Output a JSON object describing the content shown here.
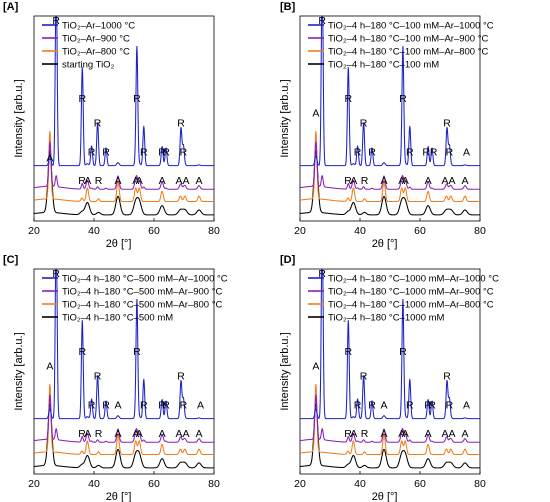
{
  "figure": {
    "colors": {
      "blue": "#1c22c8",
      "purple": "#8a1fb8",
      "orange": "#f07d1a",
      "black": "#000000"
    }
  },
  "chart_data": [
    {
      "type": "line",
      "panel": "[A]",
      "xlabel": "2θ [°]",
      "ylabel": "Intensity [arb.u.]",
      "xlim": [
        20,
        80
      ],
      "xticks": [
        "20",
        "40",
        "60",
        "80"
      ],
      "series": [
        {
          "name": "TiO₂–Ar–1000 °C",
          "color": "blue"
        },
        {
          "name": "TiO₂–Ar–900 °C",
          "color": "purple"
        },
        {
          "name": "TiO₂–Ar–800 °C",
          "color": "orange"
        },
        {
          "name": "starting TiO₂",
          "color": "black"
        }
      ],
      "peak_labels": [
        {
          "text": "R",
          "x": 27.4,
          "tier": "top"
        },
        {
          "text": "R",
          "x": 36.1,
          "tier": "high"
        },
        {
          "text": "R",
          "x": 41.2,
          "tier": "mid"
        },
        {
          "text": "R",
          "x": 39.2,
          "tier": "low"
        },
        {
          "text": "R",
          "x": 44.0,
          "tier": "low"
        },
        {
          "text": "R",
          "x": 54.3,
          "tier": "high"
        },
        {
          "text": "R",
          "x": 56.6,
          "tier": "low"
        },
        {
          "text": "R",
          "x": 62.7,
          "tier": "low"
        },
        {
          "text": "R",
          "x": 64.0,
          "tier": "low"
        },
        {
          "text": "R",
          "x": 69.0,
          "tier": "mid"
        },
        {
          "text": "R",
          "x": 69.8,
          "tier": "low"
        },
        {
          "text": "A",
          "x": 25.3,
          "tier": "lowA"
        },
        {
          "text": "R",
          "x": 36.0,
          "tier": "base"
        },
        {
          "text": "A",
          "x": 37.9,
          "tier": "base"
        },
        {
          "text": "R",
          "x": 41.5,
          "tier": "base"
        },
        {
          "text": "A",
          "x": 48.0,
          "tier": "base"
        },
        {
          "text": "A",
          "x": 53.9,
          "tier": "base"
        },
        {
          "text": "A",
          "x": 55.1,
          "tier": "base"
        },
        {
          "text": "A",
          "x": 62.7,
          "tier": "base"
        },
        {
          "text": "AA",
          "x": 69.5,
          "tier": "base"
        },
        {
          "text": "A",
          "x": 75.0,
          "tier": "base"
        }
      ]
    },
    {
      "type": "line",
      "panel": "[B]",
      "xlabel": "2θ [°]",
      "ylabel": "Intensity [arb.u.]",
      "xlim": [
        20,
        80
      ],
      "xticks": [
        "20",
        "40",
        "60",
        "80"
      ],
      "series": [
        {
          "name": "TiO₂–4 h–180 °C–100 mM–Ar–1000 °C",
          "color": "blue"
        },
        {
          "name": "TiO₂–4 h–180 °C–100 mM–Ar–900 °C",
          "color": "purple"
        },
        {
          "name": "TiO₂–4 h–180 °C–100 mM–Ar–800 °C",
          "color": "orange"
        },
        {
          "name": "TiO₂–4 h–180 °C–100 mM",
          "color": "black"
        }
      ],
      "peak_labels": [
        {
          "text": "R",
          "x": 27.4,
          "tier": "top"
        },
        {
          "text": "A",
          "x": 25.3,
          "tier": "highA"
        },
        {
          "text": "R",
          "x": 36.1,
          "tier": "high"
        },
        {
          "text": "R",
          "x": 41.2,
          "tier": "mid"
        },
        {
          "text": "R",
          "x": 39.2,
          "tier": "low"
        },
        {
          "text": "R",
          "x": 44.0,
          "tier": "low"
        },
        {
          "text": "R",
          "x": 54.3,
          "tier": "high"
        },
        {
          "text": "R",
          "x": 56.6,
          "tier": "low"
        },
        {
          "text": "RR",
          "x": 63.3,
          "tier": "low"
        },
        {
          "text": "R",
          "x": 69.0,
          "tier": "mid"
        },
        {
          "text": "R",
          "x": 69.8,
          "tier": "low"
        },
        {
          "text": "A",
          "x": 75.5,
          "tier": "low"
        },
        {
          "text": "R",
          "x": 36.0,
          "tier": "base"
        },
        {
          "text": "A",
          "x": 37.9,
          "tier": "base"
        },
        {
          "text": "R",
          "x": 41.5,
          "tier": "base"
        },
        {
          "text": "A",
          "x": 48.0,
          "tier": "base"
        },
        {
          "text": "A",
          "x": 53.9,
          "tier": "base"
        },
        {
          "text": "A",
          "x": 55.1,
          "tier": "base"
        },
        {
          "text": "A",
          "x": 62.7,
          "tier": "base"
        },
        {
          "text": "AA",
          "x": 69.5,
          "tier": "base"
        },
        {
          "text": "A",
          "x": 75.0,
          "tier": "base"
        }
      ]
    },
    {
      "type": "line",
      "panel": "[C]",
      "xlabel": "2θ [°]",
      "ylabel": "Intensity [arb.u.]",
      "xlim": [
        20,
        80
      ],
      "xticks": [
        "20",
        "40",
        "60",
        "80"
      ],
      "series": [
        {
          "name": "TiO₂–4 h–180 °C–500 mM–Ar–1000 °C",
          "color": "blue"
        },
        {
          "name": "TiO₂–4 h–180 °C–500 mM–Ar–900 °C",
          "color": "purple"
        },
        {
          "name": "TiO₂–4 h–180 °C–500 mM–Ar–800 °C",
          "color": "orange"
        },
        {
          "name": "TiO₂–4 h–180 °C–500 mM",
          "color": "black"
        }
      ],
      "peak_labels": [
        {
          "text": "R",
          "x": 27.4,
          "tier": "top"
        },
        {
          "text": "A",
          "x": 25.3,
          "tier": "highA"
        },
        {
          "text": "R",
          "x": 36.1,
          "tier": "high"
        },
        {
          "text": "R",
          "x": 41.2,
          "tier": "mid"
        },
        {
          "text": "R",
          "x": 39.2,
          "tier": "low"
        },
        {
          "text": "R",
          "x": 44.0,
          "tier": "low"
        },
        {
          "text": "A",
          "x": 48.0,
          "tier": "low"
        },
        {
          "text": "R",
          "x": 54.3,
          "tier": "high"
        },
        {
          "text": "R",
          "x": 56.6,
          "tier": "low"
        },
        {
          "text": "R",
          "x": 62.7,
          "tier": "low"
        },
        {
          "text": "R",
          "x": 64.0,
          "tier": "low"
        },
        {
          "text": "R",
          "x": 69.0,
          "tier": "mid"
        },
        {
          "text": "R",
          "x": 69.8,
          "tier": "low"
        },
        {
          "text": "A",
          "x": 75.5,
          "tier": "low"
        },
        {
          "text": "R",
          "x": 36.0,
          "tier": "base"
        },
        {
          "text": "A",
          "x": 37.9,
          "tier": "base"
        },
        {
          "text": "R",
          "x": 41.5,
          "tier": "base"
        },
        {
          "text": "A",
          "x": 48.0,
          "tier": "base"
        },
        {
          "text": "A",
          "x": 53.9,
          "tier": "base"
        },
        {
          "text": "A",
          "x": 55.1,
          "tier": "base"
        },
        {
          "text": "A",
          "x": 62.7,
          "tier": "base"
        },
        {
          "text": "AA",
          "x": 69.5,
          "tier": "base"
        },
        {
          "text": "A",
          "x": 75.0,
          "tier": "base"
        }
      ]
    },
    {
      "type": "line",
      "panel": "[D]",
      "xlabel": "2θ [°]",
      "ylabel": "Intensity [arb.u.]",
      "xlim": [
        20,
        80
      ],
      "xticks": [
        "20",
        "40",
        "60",
        "80"
      ],
      "series": [
        {
          "name": "TiO₂–4 h–180 °C–1000 mM–Ar–1000 °C",
          "color": "blue"
        },
        {
          "name": "TiO₂–4 h–180 °C–1000 mM–Ar–900 °C",
          "color": "purple"
        },
        {
          "name": "TiO₂–4 h–180 °C–1000 mM–Ar–800 °C",
          "color": "orange"
        },
        {
          "name": "TiO₂–4 h–180 °C–1000 mM",
          "color": "black"
        }
      ],
      "peak_labels": [
        {
          "text": "R",
          "x": 27.4,
          "tier": "top"
        },
        {
          "text": "A",
          "x": 25.3,
          "tier": "highA"
        },
        {
          "text": "R",
          "x": 36.1,
          "tier": "high"
        },
        {
          "text": "R",
          "x": 41.2,
          "tier": "mid"
        },
        {
          "text": "R",
          "x": 39.2,
          "tier": "low"
        },
        {
          "text": "R",
          "x": 44.0,
          "tier": "low"
        },
        {
          "text": "A",
          "x": 48.0,
          "tier": "low"
        },
        {
          "text": "R",
          "x": 54.3,
          "tier": "high"
        },
        {
          "text": "R",
          "x": 56.6,
          "tier": "low"
        },
        {
          "text": "R",
          "x": 62.7,
          "tier": "low"
        },
        {
          "text": "R",
          "x": 64.0,
          "tier": "low"
        },
        {
          "text": "R",
          "x": 69.0,
          "tier": "mid"
        },
        {
          "text": "R",
          "x": 69.8,
          "tier": "low"
        },
        {
          "text": "A",
          "x": 75.5,
          "tier": "low"
        },
        {
          "text": "R",
          "x": 36.0,
          "tier": "base"
        },
        {
          "text": "A",
          "x": 37.9,
          "tier": "base"
        },
        {
          "text": "R",
          "x": 41.5,
          "tier": "base"
        },
        {
          "text": "A",
          "x": 48.0,
          "tier": "base"
        },
        {
          "text": "A",
          "x": 53.9,
          "tier": "base"
        },
        {
          "text": "A",
          "x": 55.1,
          "tier": "base"
        },
        {
          "text": "A",
          "x": 62.7,
          "tier": "base"
        },
        {
          "text": "AA",
          "x": 69.5,
          "tier": "base"
        },
        {
          "text": "A",
          "x": 75.0,
          "tier": "base"
        }
      ]
    }
  ]
}
